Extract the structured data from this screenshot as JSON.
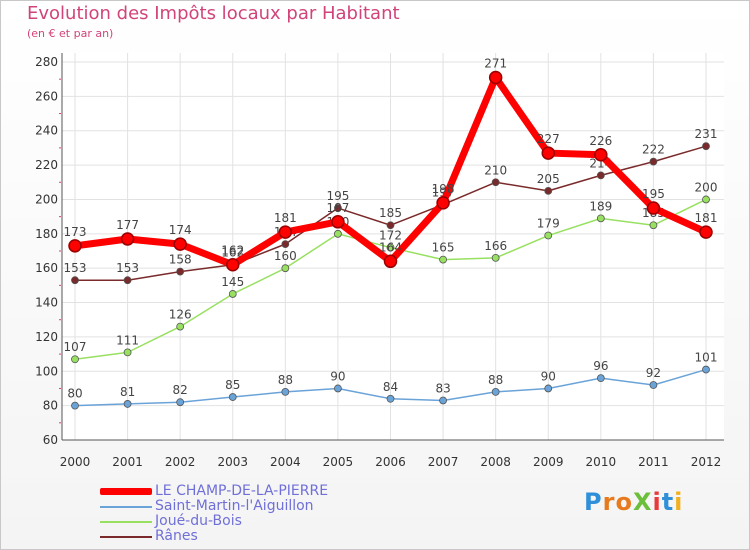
{
  "title": "Evolution des Impôts locaux par Habitant",
  "subtitle": "(en € et par an)",
  "logo": {
    "text": "ProXiti",
    "letters": [
      "P",
      "r",
      "o",
      "X",
      "i",
      "t",
      "i"
    ],
    "colors": [
      "#2f8fd8",
      "#e87a1e",
      "#e87a1e",
      "#6cbf3a",
      "#e83a3a",
      "#2f8fd8",
      "#f0b020"
    ]
  },
  "chart_data": {
    "type": "line",
    "x": [
      2000,
      2001,
      2002,
      2003,
      2004,
      2005,
      2006,
      2007,
      2008,
      2009,
      2010,
      2011,
      2012
    ],
    "ylim": [
      60,
      280
    ],
    "yticks": [
      60,
      80,
      100,
      120,
      140,
      160,
      180,
      200,
      220,
      240,
      260,
      280
    ],
    "grid": true,
    "series": [
      {
        "name": "Rânes",
        "color": "#7a2a2a",
        "values": [
          153,
          153,
          158,
          162,
          174,
          195,
          185,
          197,
          210,
          205,
          214,
          222,
          231
        ]
      },
      {
        "name": "Joué-du-Bois",
        "color": "#98e060",
        "values": [
          107,
          111,
          126,
          145,
          160,
          180,
          172,
          165,
          166,
          179,
          189,
          185,
          200
        ]
      },
      {
        "name": "Saint-Martin-l'Aiguillon",
        "color": "#6aa3d8",
        "values": [
          80,
          81,
          82,
          85,
          88,
          90,
          84,
          83,
          88,
          90,
          96,
          92,
          101
        ]
      },
      {
        "name": "LE CHAMP-DE-LA-PIERRE",
        "color": "#ff0000",
        "values": [
          173,
          177,
          174,
          162,
          181,
          187,
          164,
          198,
          271,
          227,
          226,
          195,
          181
        ]
      }
    ],
    "legend": [
      "LE CHAMP-DE-LA-PIERRE",
      "Saint-Martin-l'Aiguillon",
      "Joué-du-Bois",
      "Rânes"
    ]
  }
}
